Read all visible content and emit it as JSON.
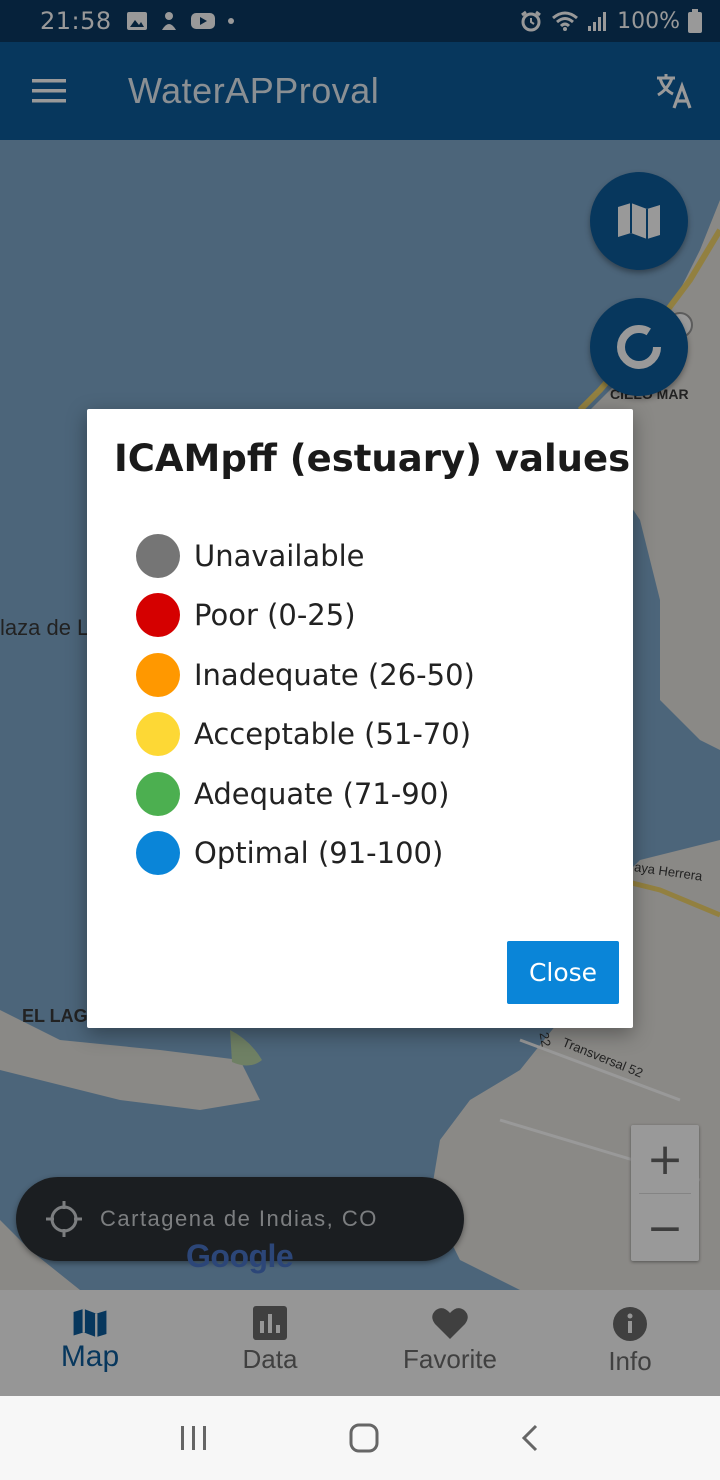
{
  "status_bar": {
    "time": "21:58",
    "battery": "100%",
    "icons_left": [
      "image-icon",
      "hand-icon",
      "youtube-icon",
      "dot-icon"
    ],
    "icons_right": [
      "alarm-icon",
      "wifi-icon",
      "signal-icon",
      "battery-icon"
    ]
  },
  "app_bar": {
    "title": "WaterAPProval"
  },
  "map": {
    "labels": {
      "plaza": "laza de L",
      "el_lago": "EL LAG",
      "cielo_mar": "CIELO MAR",
      "playa": "aya Herrera",
      "transversal": "Transversal 52",
      "num_22": "22"
    },
    "location": "Cartagena de Indias, CO",
    "zoom_in": "+",
    "zoom_out": "−",
    "attribution": "Google"
  },
  "dialog": {
    "title": "ICAMpff (estuary) values",
    "items": [
      {
        "label": "Unavailable",
        "color": "#757575"
      },
      {
        "label": "Poor (0-25)",
        "color": "#d50000"
      },
      {
        "label": "Inadequate (26-50)",
        "color": "#ff9800"
      },
      {
        "label": "Acceptable (51-70)",
        "color": "#fdd835"
      },
      {
        "label": "Adequate (71-90)",
        "color": "#4caf50"
      },
      {
        "label": "Optimal (91-100)",
        "color": "#0a85d8"
      }
    ],
    "close_label": "Close"
  },
  "bottom_nav": {
    "items": [
      {
        "label": "Map",
        "icon": "map-icon",
        "active": true
      },
      {
        "label": "Data",
        "icon": "chart-icon",
        "active": false
      },
      {
        "label": "Favorite",
        "icon": "heart-icon",
        "active": false
      },
      {
        "label": "Info",
        "icon": "info-icon",
        "active": false
      }
    ]
  },
  "colors": {
    "primary": "#0d5c9c",
    "status_bar": "#0a3a63",
    "accent": "#0a85d8"
  }
}
